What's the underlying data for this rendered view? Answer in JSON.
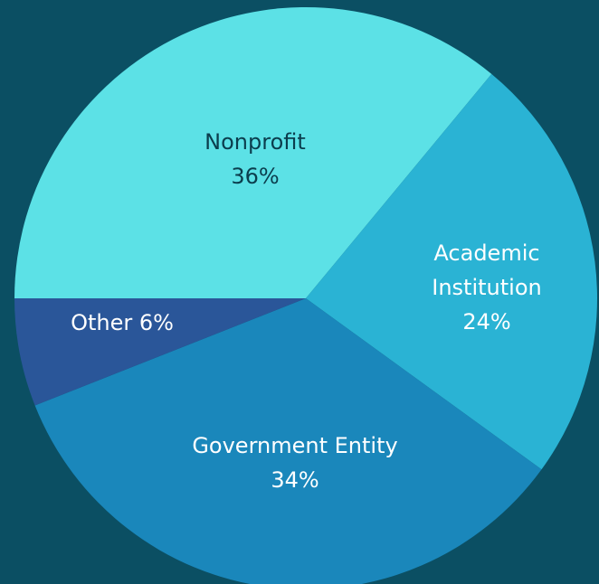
{
  "chart_data": {
    "type": "pie",
    "categories": [
      "Nonprofit",
      "Academic Institution",
      "Government Entity",
      "Other"
    ],
    "values": [
      36,
      24,
      34,
      6
    ],
    "value_labels": [
      "36%",
      "24%",
      "34%",
      "6%"
    ],
    "colors": [
      "#5ce1e6",
      "#2ab3d4",
      "#1a87bb",
      "#2a5699"
    ]
  }
}
